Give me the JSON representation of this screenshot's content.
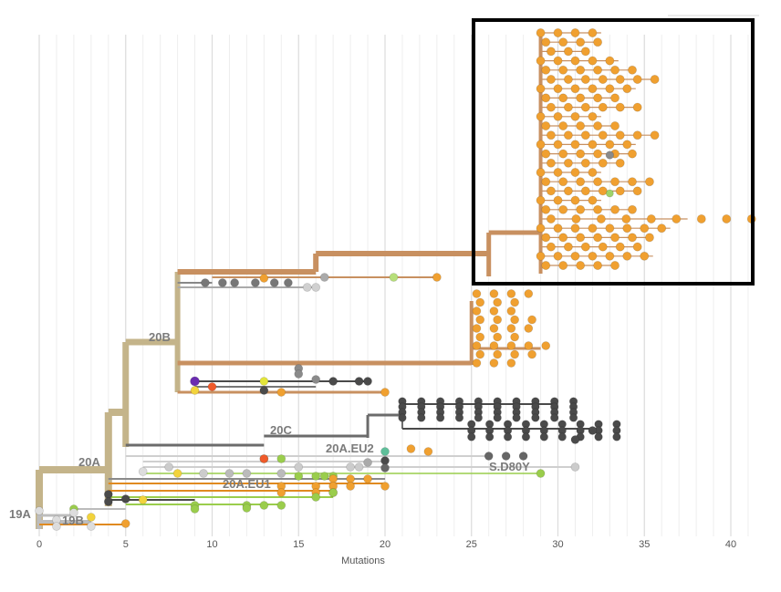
{
  "chart_data": {
    "type": "scatter",
    "xlabel": "Mutations",
    "xlim": [
      0,
      41
    ],
    "xticks": [
      0,
      5,
      10,
      15,
      20,
      25,
      30,
      35,
      40
    ],
    "grid": true,
    "colors": {
      "orange": "#f0a030",
      "orange_dark": "#e08a20",
      "dark_gray": "#4a4a4a",
      "gray": "#9a9a9a",
      "light_gray": "#cfcfcf",
      "green": "#9acd4c",
      "yellow": "#f2d33c",
      "red": "#f05a2a",
      "purple": "#6a2bb0",
      "teal": "#5fbf9a",
      "trunk_tan": "#c4b48a",
      "branch_brown": "#c89060"
    },
    "clade_labels": [
      {
        "text": "19A",
        "x": 0
      },
      {
        "text": "19B",
        "x": 2
      },
      {
        "text": "20A",
        "x": 4
      },
      {
        "text": "20B",
        "x": 8
      },
      {
        "text": "20C",
        "x": 15
      },
      {
        "text": "20A.EU2",
        "x": 19
      },
      {
        "text": "20A.EU1",
        "x": 12
      },
      {
        "text": "S.D80Y",
        "x": 28
      }
    ],
    "highlight_box": {
      "x_range": [
        25.5,
        41.5
      ],
      "note": ""
    }
  }
}
